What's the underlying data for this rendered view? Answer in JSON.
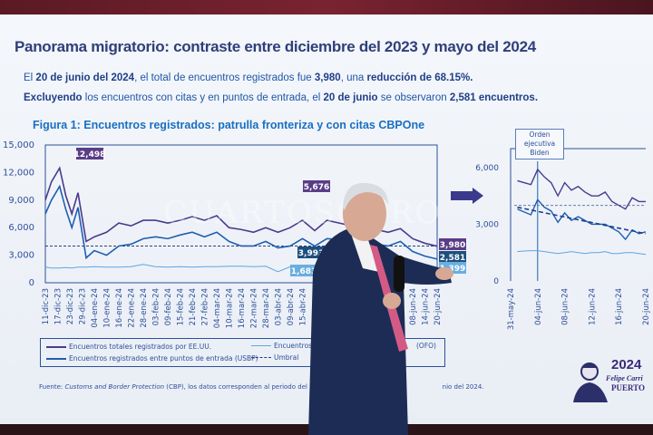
{
  "slide": {
    "title": "Panorama migratorio: contraste entre diciembre del 2023 y mayo del 2024",
    "line1": [
      {
        "t": "El ",
        "b": false
      },
      {
        "t": "20 de junio del 2024",
        "b": true
      },
      {
        "t": ", el total de encuentros registrados fue ",
        "b": false
      },
      {
        "t": "3,980",
        "b": true
      },
      {
        "t": ", una ",
        "b": false
      },
      {
        "t": "reducción de 68.15%.",
        "b": true
      }
    ],
    "line2": [
      {
        "t": "Excluyendo",
        "b": true
      },
      {
        "t": " los encuentros con citas y en puntos de entrada, el ",
        "b": false
      },
      {
        "t": "20 de junio",
        "b": true
      },
      {
        "t": " se observaron ",
        "b": false
      },
      {
        "t": "2,581 encuentros.",
        "b": true
      }
    ],
    "figure_title": "Figura 1: Encuentros registrados: patrulla fronteriza y con citas CBPOne",
    "legend": {
      "total": "Encuentros totales registrados por EE.UU.",
      "ofo": "Encuentros regis",
      "ofo_tail": "(OFO)",
      "usbp": "Encuentros registrados entre puntos de entrada (USBP)",
      "threshold": "Umbral"
    },
    "source_label": "Fuente: ",
    "source_italic": "Customs and Border Protection",
    "source_text": " (CBP), los datos corresponden al periodo del 10 del d",
    "source_tail": "nio del 2024.",
    "biden_note": "Orden ejecutiva Biden",
    "logo": {
      "year": "2024",
      "name": "Felipe Carri",
      "place": "PUERTO"
    },
    "watermark": "CUARTOSCURO"
  },
  "colors": {
    "total": "#4a3a8c",
    "usbp": "#1f5fb0",
    "ofo": "#5fa6df",
    "threshold": "#2d3f7a",
    "axis": "#2d4f9a",
    "label_total": "#5a3d86",
    "label_usbp": "#1d4f7f",
    "label_ofo": "#6aaee0"
  },
  "chart_data": [
    {
      "type": "line",
      "title": "Figura 1: Encuentros registrados: patrulla fronteriza y con citas CBPOne",
      "ylim": [
        0,
        15000
      ],
      "yticks": [
        "0",
        "3,000",
        "6,000",
        "9,000",
        "12,000",
        "15,000"
      ],
      "xticks": [
        "11-dic-23",
        "17-dic-23",
        "23-dic-23",
        "29-dic-23",
        "04-ene-24",
        "10-ene-24",
        "16-ene-24",
        "22-ene-24",
        "28-ene-24",
        "03-feb-24",
        "09-feb-24",
        "15-feb-24",
        "21-feb-24",
        "27-feb-24",
        "04-mar-24",
        "10-mar-24",
        "16-mar-24",
        "22-mar-24",
        "28-mar-24",
        "03-abr-24",
        "09-abr-24",
        "15-abr-24",
        "08-jun-24",
        "14-jun-24",
        "20-jun-24"
      ],
      "x": [
        "2023-12-11",
        "2023-12-14",
        "2023-12-18",
        "2023-12-21",
        "2023-12-24",
        "2023-12-27",
        "2023-12-31",
        "2024-01-04",
        "2024-01-10",
        "2024-01-16",
        "2024-01-22",
        "2024-01-28",
        "2024-02-03",
        "2024-02-09",
        "2024-02-15",
        "2024-02-21",
        "2024-02-27",
        "2024-03-04",
        "2024-03-10",
        "2024-03-16",
        "2024-03-22",
        "2024-03-28",
        "2024-04-03",
        "2024-04-09",
        "2024-04-15",
        "2024-04-21",
        "2024-04-27",
        "2024-05-03",
        "2024-05-09",
        "2024-05-15",
        "2024-05-21",
        "2024-05-27",
        "2024-06-02",
        "2024-06-08",
        "2024-06-14",
        "2024-06-20"
      ],
      "series": [
        {
          "name": "Encuentros totales registrados por EE.UU.",
          "key": "total",
          "values": [
            9000,
            11000,
            12498,
            9500,
            7500,
            9800,
            4500,
            5000,
            5500,
            6500,
            6200,
            6800,
            6800,
            6500,
            6800,
            7200,
            6800,
            7300,
            6000,
            5800,
            5500,
            6000,
            5500,
            6000,
            6800,
            5676,
            6800,
            6500,
            6200,
            6000,
            5800,
            5500,
            5900,
            4800,
            4300,
            3980
          ]
        },
        {
          "name": "Encuentros registrados entre puntos de entrada (USBP)",
          "key": "usbp",
          "values": [
            7500,
            9000,
            10500,
            8000,
            6000,
            8200,
            2700,
            3500,
            3000,
            4000,
            4200,
            4800,
            5000,
            4800,
            5200,
            5500,
            5000,
            5500,
            4500,
            4000,
            4000,
            4500,
            3800,
            4000,
            4800,
            3993,
            4800,
            4700,
            4500,
            4300,
            4200,
            4000,
            4500,
            3400,
            2900,
            2581
          ]
        },
        {
          "name": "Encuentros regis... (OFO)",
          "key": "ofo",
          "values": [
            1700,
            1600,
            1600,
            1650,
            1600,
            1700,
            1700,
            1750,
            1700,
            1700,
            1750,
            2000,
            1750,
            1700,
            1750,
            1700,
            1750,
            1750,
            1800,
            1800,
            1750,
            1800,
            1200,
            1750,
            1750,
            1683,
            1700,
            1650,
            1600,
            1500,
            1500,
            1450,
            1450,
            1400,
            1399,
            1399
          ]
        }
      ],
      "threshold": {
        "name": "Umbral",
        "value": 4000
      },
      "data_labels": [
        {
          "date": "2023-12-18",
          "series": "total",
          "text": "12,498"
        },
        {
          "date": "2024-04-21",
          "series": "total",
          "text": "5,676"
        },
        {
          "date": "2024-04-21",
          "series": "usbp",
          "text": "3,993"
        },
        {
          "date": "2024-04-21",
          "series": "ofo",
          "text": "1,683"
        },
        {
          "date": "2024-06-20",
          "series": "total",
          "text": "3,980"
        },
        {
          "date": "2024-06-20",
          "series": "usbp",
          "text": "2,581"
        },
        {
          "date": "2024-06-20",
          "series": "ofo",
          "text": "1,399"
        }
      ],
      "grid": false
    },
    {
      "type": "line",
      "ylim": [
        0,
        7000
      ],
      "yticks": [
        "0",
        "3,000",
        "6,000"
      ],
      "xticks": [
        "31-may-24",
        "04-jun-24",
        "08-jun-24",
        "12-jun-24",
        "16-jun-24",
        "20-jun-24"
      ],
      "x_start": "2024-06-01",
      "series": [
        {
          "key": "total",
          "values": [
            5300,
            5200,
            5100,
            5900,
            5500,
            5200,
            4500,
            5200,
            4800,
            5000,
            4700,
            4500,
            4500,
            4700,
            4200,
            4000,
            3800,
            4400,
            4200,
            4200
          ]
        },
        {
          "key": "usbp",
          "values": [
            3800,
            3650,
            3500,
            4300,
            3900,
            3700,
            3100,
            3600,
            3200,
            3400,
            3200,
            3000,
            3000,
            3000,
            2800,
            2600,
            2200,
            2700,
            2500,
            2600
          ]
        },
        {
          "key": "ofo",
          "values": [
            1550,
            1580,
            1600,
            1600,
            1550,
            1500,
            1450,
            1500,
            1550,
            1500,
            1450,
            1500,
            1500,
            1550,
            1450,
            1450,
            1500,
            1500,
            1450,
            1400
          ]
        }
      ],
      "trend": {
        "from": 3900,
        "to": 2500
      },
      "threshold": {
        "value": 4000
      },
      "event": {
        "date": "2024-06-04",
        "label": "Orden ejecutiva Biden"
      },
      "grid": false
    }
  ]
}
